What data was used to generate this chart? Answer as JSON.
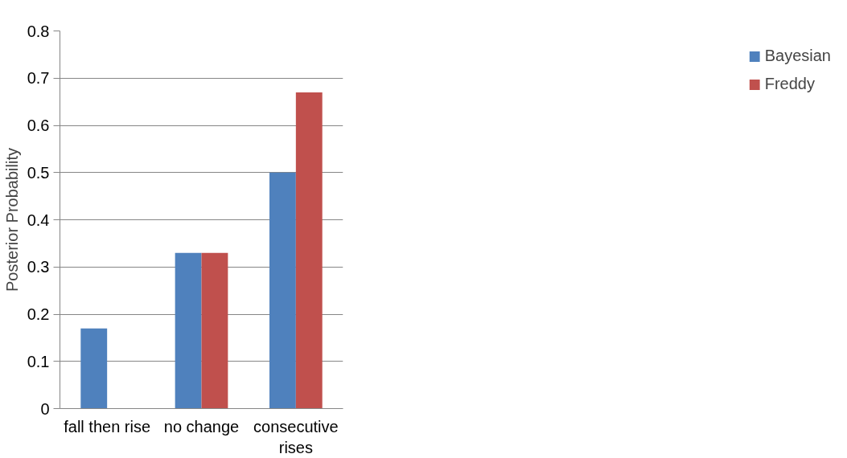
{
  "chart_data": {
    "type": "bar",
    "ylabel": "Posterior Probability",
    "categories": [
      "fall then rise",
      "no change",
      "consecutive rises"
    ],
    "series": [
      {
        "name": "Bayesian",
        "color": "#4f81bd",
        "values": [
          0.17,
          0.33,
          0.5
        ]
      },
      {
        "name": "Freddy",
        "color": "#c0504d",
        "values": [
          0,
          0.33,
          0.67
        ]
      }
    ],
    "ylim": [
      0,
      0.8
    ],
    "yticks": [
      0,
      0.1,
      0.2,
      0.3,
      0.4,
      0.5,
      0.6,
      0.7,
      0.8
    ],
    "grid": "y",
    "legend": "right"
  }
}
